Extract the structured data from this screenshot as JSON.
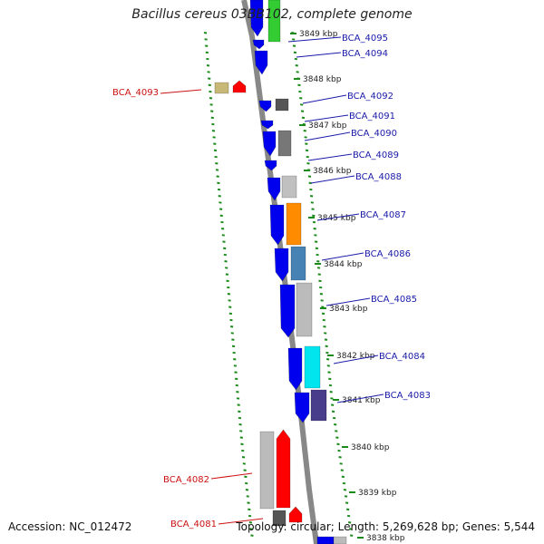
{
  "title": "Bacillus cereus 03BB102, complete genome",
  "accession": "Accession: NC_012472",
  "summary": "Topology: circular; Length: 5,269,628 bp; Genes: 5,544",
  "colors": {
    "backbone": "#888888",
    "tick": "#1a8a1a",
    "label_forward": "#1a1aa8",
    "label_reverse": "#cc1111"
  },
  "kbp_labels": [
    "3849 kbp",
    "3848 kbp",
    "3847 kbp",
    "3846 kbp",
    "3845 kbp",
    "3844 kbp",
    "3843 kbp",
    "3842 kbp",
    "3841 kbp",
    "3840 kbp",
    "3839 kbp",
    "3838 kbp"
  ],
  "genes": [
    {
      "label": "BCA_4095",
      "strand": "forward",
      "cog_color": "#33cc33"
    },
    {
      "label": "BCA_4094",
      "strand": "forward",
      "cog_color": "#0000ee"
    },
    {
      "label": "BCA_4093",
      "strand": "reverse",
      "cog_color": "#ff0000",
      "cog_color_2": "#c8b878"
    },
    {
      "label": "BCA_4092",
      "strand": "forward",
      "cog_color": "#555555"
    },
    {
      "label": "BCA_4091",
      "strand": "forward",
      "cog_color": "#0000ee"
    },
    {
      "label": "BCA_4090",
      "strand": "forward",
      "cog_color": "#777777"
    },
    {
      "label": "BCA_4089",
      "strand": "forward",
      "cog_color": "#0000ee"
    },
    {
      "label": "BCA_4088",
      "strand": "forward",
      "cog_color": "#c0c0c0"
    },
    {
      "label": "BCA_4087",
      "strand": "forward",
      "cog_color": "#ff8c00"
    },
    {
      "label": "BCA_4086",
      "strand": "forward",
      "cog_color": "#4682b4"
    },
    {
      "label": "BCA_4085",
      "strand": "forward",
      "cog_color": "#bbbbbb"
    },
    {
      "label": "BCA_4084",
      "strand": "forward",
      "cog_color": "#00e5ee"
    },
    {
      "label": "BCA_4083",
      "strand": "forward",
      "cog_color": "#483d8b"
    },
    {
      "label": "BCA_4082",
      "strand": "reverse",
      "cog_color": "#ff0000",
      "cog_color_2": "#bbbbbb"
    },
    {
      "label": "BCA_4081",
      "strand": "reverse",
      "cog_color": "#ff0000"
    }
  ]
}
